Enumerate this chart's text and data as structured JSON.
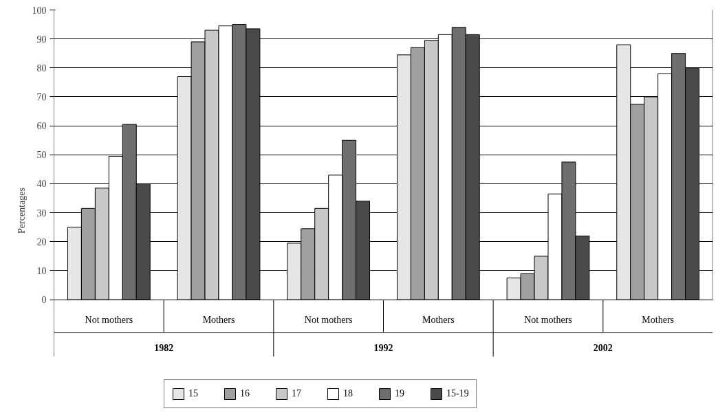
{
  "chart_data": {
    "type": "bar",
    "ylabel": "Percentages",
    "categories": [
      "Not mothers",
      "Mothers",
      "Not mothers",
      "Mothers",
      "Not mothers",
      "Mothers"
    ],
    "annotations": [
      "1982",
      "1992",
      "2002"
    ],
    "series": [
      {
        "name": "15",
        "color": "#e6e6e6",
        "values": [
          25,
          77,
          19.5,
          84.5,
          7.5,
          88
        ]
      },
      {
        "name": "16",
        "color": "#a0a0a0",
        "values": [
          31.5,
          89,
          24.5,
          87,
          9,
          67.5
        ]
      },
      {
        "name": "17",
        "color": "#c8c8c8",
        "values": [
          38.5,
          93,
          31.5,
          89.5,
          15,
          70
        ]
      },
      {
        "name": "18",
        "color": "#ffffff",
        "values": [
          49.5,
          94.5,
          43,
          91.5,
          36.5,
          78
        ]
      },
      {
        "name": "19",
        "color": "#6e6e6e",
        "values": [
          60.5,
          95,
          55,
          94,
          47.5,
          85
        ]
      },
      {
        "name": "15-19",
        "color": "#4a4a4a",
        "values": [
          40,
          93.5,
          34,
          91.5,
          22,
          80
        ]
      }
    ],
    "ylim": [
      0,
      100
    ],
    "yticks": [
      0,
      10,
      20,
      30,
      40,
      50,
      60,
      70,
      80,
      90,
      100
    ],
    "grid": "y",
    "legend": "bottom"
  }
}
